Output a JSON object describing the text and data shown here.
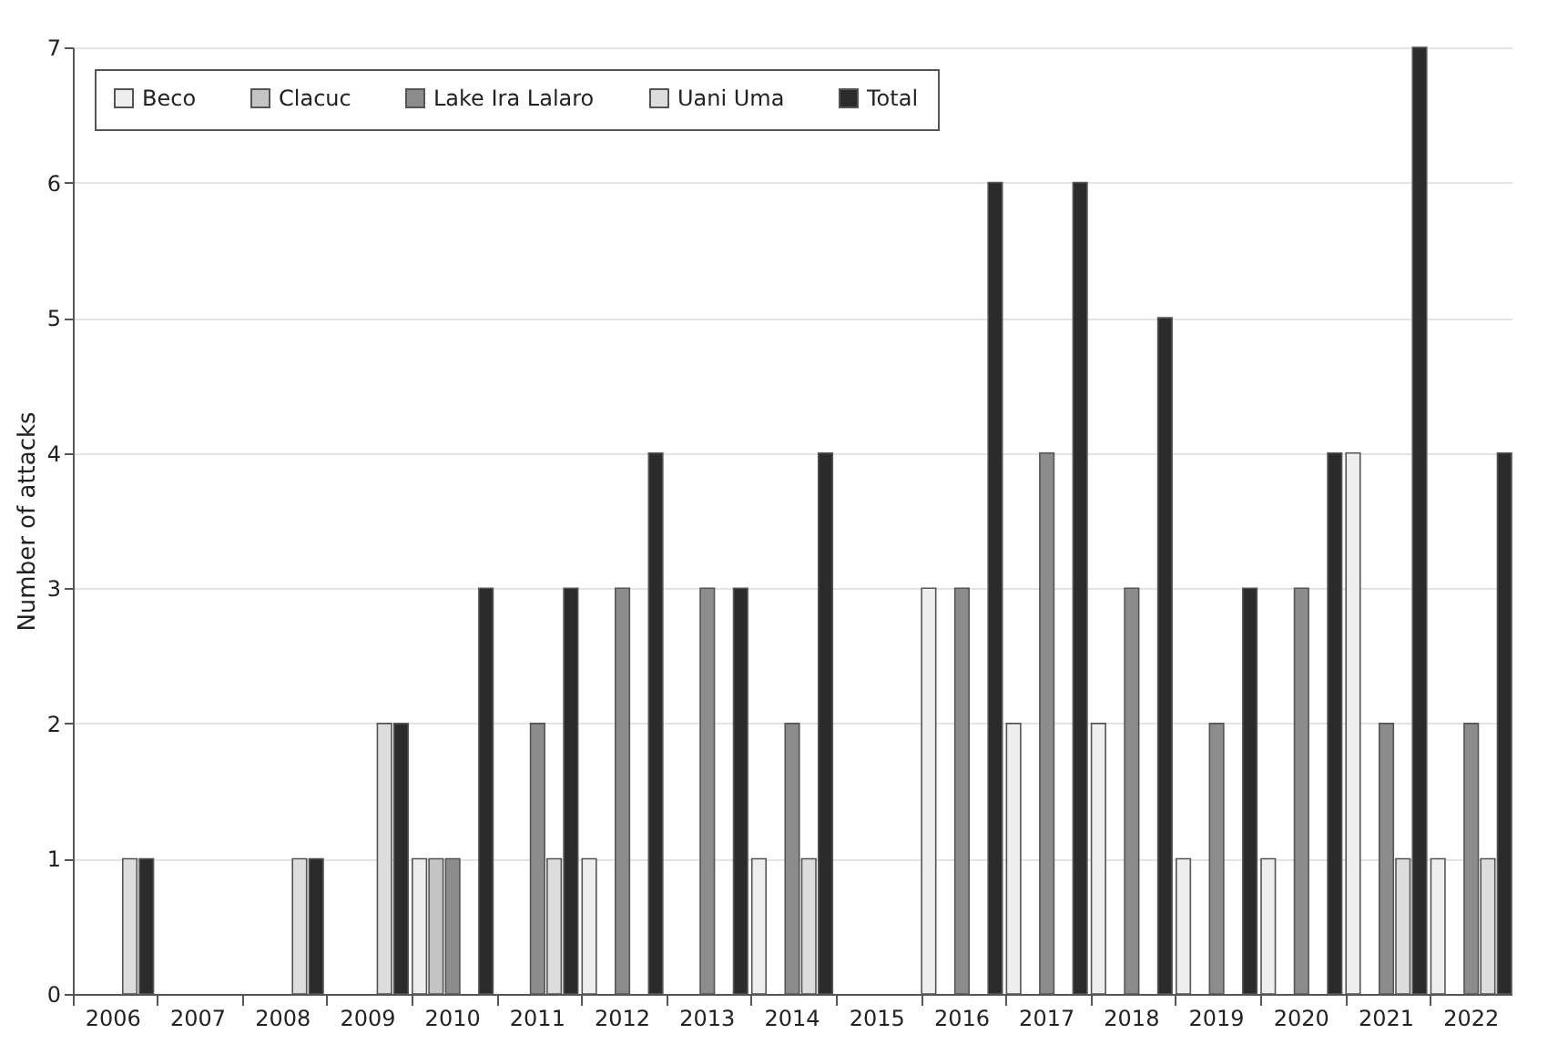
{
  "chart_data": {
    "type": "bar",
    "ylabel": "Number of attacks",
    "categories": [
      "2006",
      "2007",
      "2008",
      "2009",
      "2010",
      "2011",
      "2012",
      "2013",
      "2014",
      "2015",
      "2016",
      "2017",
      "2018",
      "2019",
      "2020",
      "2021",
      "2022"
    ],
    "series": [
      {
        "name": "Beco",
        "color": "#eeeeee",
        "values": [
          null,
          null,
          null,
          null,
          1,
          null,
          1,
          null,
          1,
          null,
          3,
          2,
          2,
          1,
          1,
          4,
          1
        ]
      },
      {
        "name": "Clacuc",
        "color": "#c4c4c4",
        "values": [
          null,
          null,
          null,
          null,
          1,
          null,
          null,
          null,
          null,
          null,
          null,
          null,
          null,
          null,
          null,
          null,
          null
        ]
      },
      {
        "name": "Lake Ira Lalaro",
        "color": "#8c8c8c",
        "values": [
          null,
          null,
          null,
          null,
          1,
          2,
          3,
          3,
          2,
          null,
          3,
          4,
          3,
          2,
          3,
          2,
          2
        ]
      },
      {
        "name": "Uani Uma",
        "color": "#dddddd",
        "values": [
          1,
          null,
          1,
          2,
          null,
          1,
          null,
          null,
          1,
          null,
          null,
          null,
          null,
          null,
          null,
          1,
          1
        ]
      },
      {
        "name": "Total",
        "color": "#2b2b2b",
        "values": [
          1,
          null,
          1,
          2,
          3,
          3,
          4,
          3,
          4,
          null,
          6,
          6,
          5,
          3,
          4,
          7,
          4
        ]
      }
    ],
    "ylim": [
      0,
      7
    ],
    "yticks": [
      0,
      1,
      2,
      3,
      4,
      5,
      6,
      7
    ],
    "grid": "y",
    "legend": "top left"
  }
}
